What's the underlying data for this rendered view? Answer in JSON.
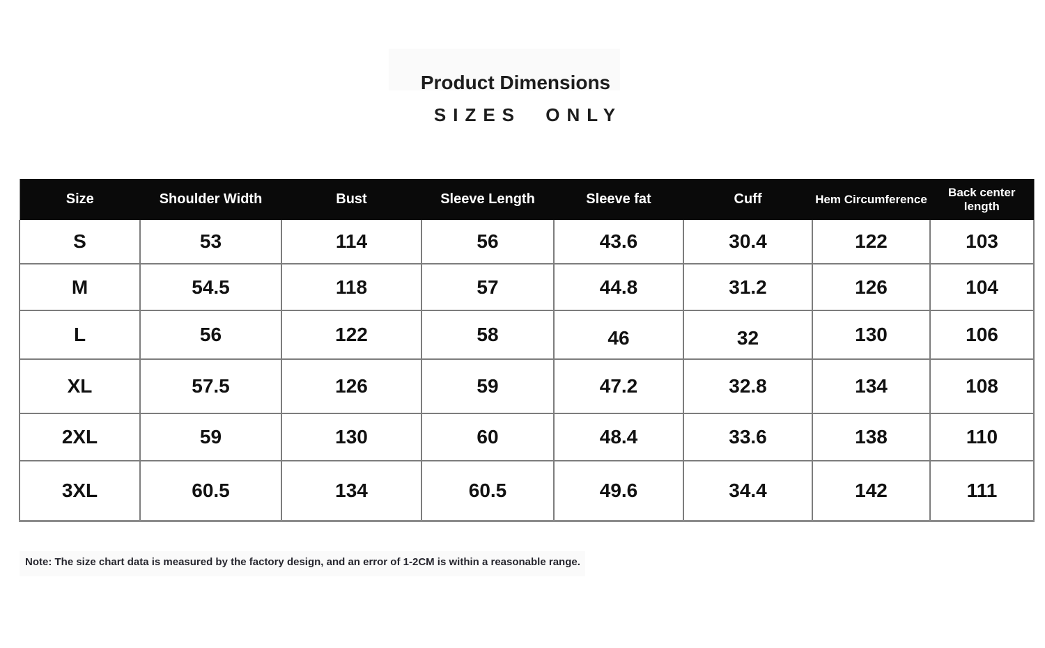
{
  "header": {
    "title": "Product Dimensions",
    "subtitle": "SIZES ONLY"
  },
  "table": {
    "columns": [
      "Size",
      "Shoulder Width",
      "Bust",
      "Sleeve Length",
      "Sleeve fat",
      "Cuff",
      "Hem Circumference",
      "Back center length"
    ],
    "rows": [
      {
        "size": "S",
        "values": [
          "53",
          "114",
          "56",
          "43.6",
          "30.4",
          "122",
          "103"
        ]
      },
      {
        "size": "M",
        "values": [
          "54.5",
          "118",
          "57",
          "44.8",
          "31.2",
          "126",
          "104"
        ]
      },
      {
        "size": "L",
        "values": [
          "56",
          "122",
          "58",
          "46",
          "32",
          "130",
          "106"
        ]
      },
      {
        "size": "XL",
        "values": [
          "57.5",
          "126",
          "59",
          "47.2",
          "32.8",
          "134",
          "108"
        ]
      },
      {
        "size": "2XL",
        "values": [
          "59",
          "130",
          "60",
          "48.4",
          "33.6",
          "138",
          "110"
        ]
      },
      {
        "size": "3XL",
        "values": [
          "60.5",
          "134",
          "60.5",
          "49.6",
          "34.4",
          "142",
          "111"
        ]
      }
    ]
  },
  "note": "Note: The size chart data is measured by the factory design, and an error of 1-2CM is within a reasonable range.",
  "colors": {
    "header_bg": "#0a0a0a",
    "header_text": "#ffffff",
    "grid_line": "#7d7d7d",
    "cell_text": "#111111",
    "note_text": "#26262e"
  }
}
